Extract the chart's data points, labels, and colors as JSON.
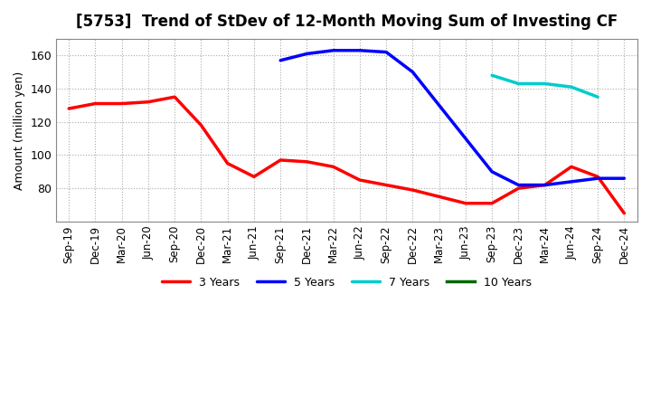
{
  "title": "[5753]  Trend of StDev of 12-Month Moving Sum of Investing CF",
  "ylabel": "Amount (million yen)",
  "background_color": "#ffffff",
  "grid_color": "#aaaaaa",
  "ylim": [
    60,
    170
  ],
  "yticks": [
    80,
    100,
    120,
    140,
    160
  ],
  "x_labels": [
    "Sep-19",
    "Dec-19",
    "Mar-20",
    "Jun-20",
    "Sep-20",
    "Dec-20",
    "Mar-21",
    "Jun-21",
    "Sep-21",
    "Dec-21",
    "Mar-22",
    "Jun-22",
    "Sep-22",
    "Dec-22",
    "Mar-23",
    "Jun-23",
    "Sep-23",
    "Dec-23",
    "Mar-24",
    "Jun-24",
    "Sep-24",
    "Dec-24"
  ],
  "series_3y": {
    "label": "3 Years",
    "color": "#ff0000",
    "data": [
      128,
      131,
      131,
      132,
      135,
      118,
      95,
      87,
      97,
      96,
      93,
      85,
      82,
      79,
      75,
      71,
      71,
      80,
      82,
      93,
      87,
      65
    ]
  },
  "series_5y": {
    "label": "5 Years",
    "color": "#0000ff",
    "data": [
      null,
      null,
      null,
      null,
      null,
      null,
      null,
      null,
      157,
      161,
      163,
      163,
      162,
      150,
      130,
      110,
      90,
      82,
      82,
      84,
      86,
      86
    ]
  },
  "series_7y": {
    "label": "7 Years",
    "color": "#00cccc",
    "data": [
      null,
      null,
      null,
      null,
      null,
      null,
      null,
      null,
      null,
      null,
      null,
      null,
      null,
      null,
      null,
      null,
      148,
      143,
      143,
      141,
      135,
      null
    ]
  },
  "series_10y": {
    "label": "10 Years",
    "color": "#006600",
    "data": [
      null,
      null,
      null,
      null,
      null,
      null,
      null,
      null,
      null,
      null,
      null,
      null,
      null,
      null,
      null,
      null,
      null,
      null,
      null,
      null,
      null,
      null
    ]
  },
  "legend_loc": "lower center",
  "line_width": 2.5
}
